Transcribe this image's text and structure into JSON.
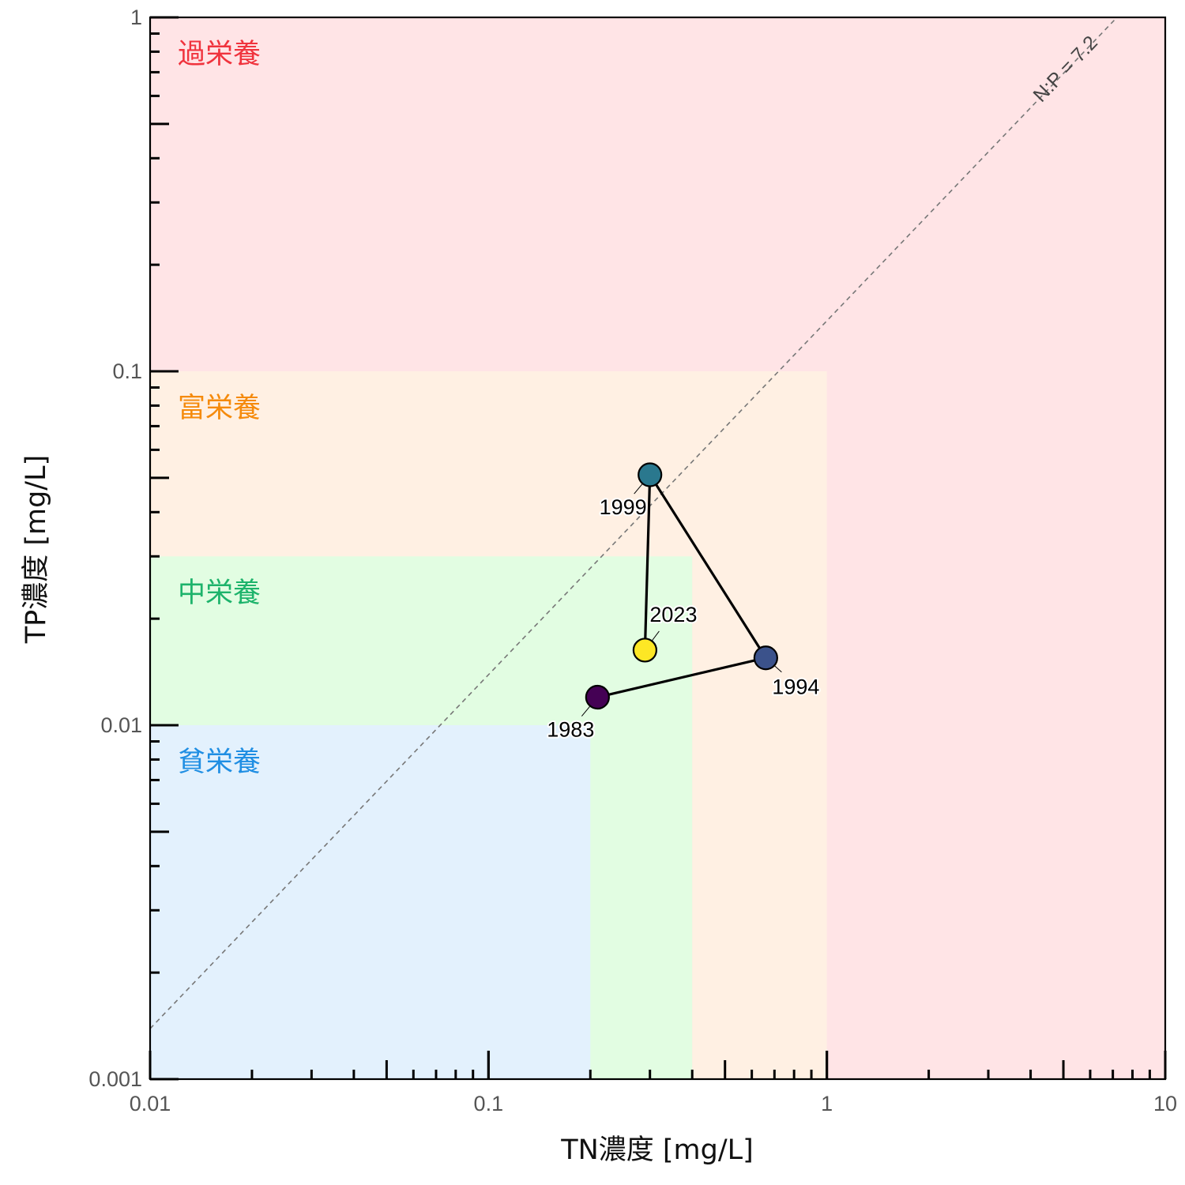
{
  "chart_data": {
    "type": "scatter",
    "title": "",
    "xlabel": "TN濃度 [mg/L]",
    "ylabel": "TP濃度 [mg/L]",
    "x_scale": "log",
    "y_scale": "log",
    "xlim": [
      0.01,
      10
    ],
    "ylim": [
      0.001,
      1
    ],
    "x_ticks": [
      {
        "value": 0.01,
        "label": "0.01"
      },
      {
        "value": 0.1,
        "label": "0.1"
      },
      {
        "value": 1,
        "label": "1"
      },
      {
        "value": 10,
        "label": "10"
      }
    ],
    "y_ticks": [
      {
        "value": 0.001,
        "label": "0.001"
      },
      {
        "value": 0.01,
        "label": "0.01"
      },
      {
        "value": 0.1,
        "label": "0.1"
      },
      {
        "value": 1,
        "label": "1"
      }
    ],
    "zones": [
      {
        "name": "過栄養",
        "tn_max": 10,
        "tp_max": 1,
        "fill": "#ffe4e6",
        "label_color": "#f0333d"
      },
      {
        "name": "富栄養",
        "tn_max": 1,
        "tp_max": 0.1,
        "fill": "#fff0e3",
        "label_color": "#f58a0b"
      },
      {
        "name": "中栄養",
        "tn_max": 0.4,
        "tp_max": 0.03,
        "fill": "#e2fde2",
        "label_color": "#1db36b"
      },
      {
        "name": "貧栄養",
        "tn_max": 0.2,
        "tp_max": 0.01,
        "fill": "#e3f1fd",
        "label_color": "#1f8ee3"
      }
    ],
    "ratio_line": {
      "label": "N:P = 7.2",
      "ratio": 7.2
    },
    "series": [
      {
        "points": [
          {
            "year": "1983",
            "tn": 0.21,
            "tp": 0.012,
            "color": "#440154",
            "label_pos": "below-left"
          },
          {
            "year": "1994",
            "tn": 0.66,
            "tp": 0.0155,
            "color": "#3b528b",
            "label_pos": "below-right"
          },
          {
            "year": "1999",
            "tn": 0.3,
            "tp": 0.051,
            "color": "#2a788e",
            "label_pos": "below-left"
          },
          {
            "year": "2023",
            "tn": 0.29,
            "tp": 0.0163,
            "color": "#fde725",
            "label_pos": "above-right"
          }
        ]
      }
    ],
    "grid": false,
    "legend": "none"
  }
}
